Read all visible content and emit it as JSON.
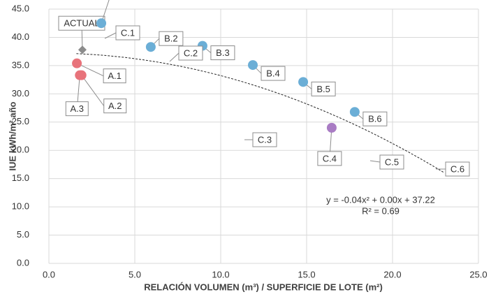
{
  "chart_data": {
    "type": "scatter",
    "x_label": "RELACIÓN VOLUMEN (m³) / SUPERFICIE DE LOTE (m²)",
    "y_label": "IUE kWh/m² año",
    "xlim": [
      0,
      25
    ],
    "xticks": [
      {
        "value": 0,
        "label": "0.0"
      },
      {
        "value": 5,
        "label": "5.0"
      },
      {
        "value": 10,
        "label": "10.0"
      },
      {
        "value": 15,
        "label": "15.0"
      },
      {
        "value": 20,
        "label": "20.0"
      },
      {
        "value": 25,
        "label": "25.0"
      }
    ],
    "ylim": [
      0,
      45
    ],
    "yticks": [
      {
        "value": 0,
        "label": "0.0"
      },
      {
        "value": 5,
        "label": "5.0"
      },
      {
        "value": 10,
        "label": "10.0"
      },
      {
        "value": 15,
        "label": "15.0"
      },
      {
        "value": 20,
        "label": "20.0"
      },
      {
        "value": 25,
        "label": "25.0"
      },
      {
        "value": 30,
        "label": "30.0"
      },
      {
        "value": 35,
        "label": "35.0"
      },
      {
        "value": 40,
        "label": "40.0"
      },
      {
        "value": 45,
        "label": "45.0"
      }
    ],
    "grid": true,
    "points": [
      {
        "label": "ACTUAL",
        "x": 1.95,
        "y": 37.8,
        "color": "#8c8c8c"
      },
      {
        "label": "B.1",
        "x": 3.05,
        "y": 42.5,
        "color": "#6baed6"
      },
      {
        "label": "A.1",
        "x": 1.63,
        "y": 35.4,
        "color": "#e8737b"
      },
      {
        "label": "A.2",
        "x": 1.9,
        "y": 33.3,
        "color": "#e8737b"
      },
      {
        "label": "A.3",
        "x": 1.8,
        "y": 33.3,
        "color": "#e8737b"
      },
      {
        "label": "B.2",
        "x": 5.93,
        "y": 38.3,
        "color": "#6baed6"
      },
      {
        "label": "B.3",
        "x": 8.94,
        "y": 38.5,
        "color": "#6baed6"
      },
      {
        "label": "B.4",
        "x": 11.87,
        "y": 35.1,
        "color": "#6baed6"
      },
      {
        "label": "B.5",
        "x": 14.8,
        "y": 32.1,
        "color": "#6baed6"
      },
      {
        "label": "B.6",
        "x": 17.8,
        "y": 26.8,
        "color": "#6baed6"
      },
      {
        "label": "C.4",
        "x": 16.46,
        "y": 24.0,
        "color": "#a97cc4"
      }
    ],
    "annotations": [
      "C.1",
      "C.2",
      "C.3",
      "C.5",
      "C.6"
    ],
    "trendline": {
      "coefficients": [
        -0.04,
        0.0,
        37.22
      ],
      "xrange": [
        1.6,
        23.0
      ],
      "equation": "y = -0.04x² + 0.00x + 37.22",
      "r2": "R² = 0.69"
    }
  }
}
